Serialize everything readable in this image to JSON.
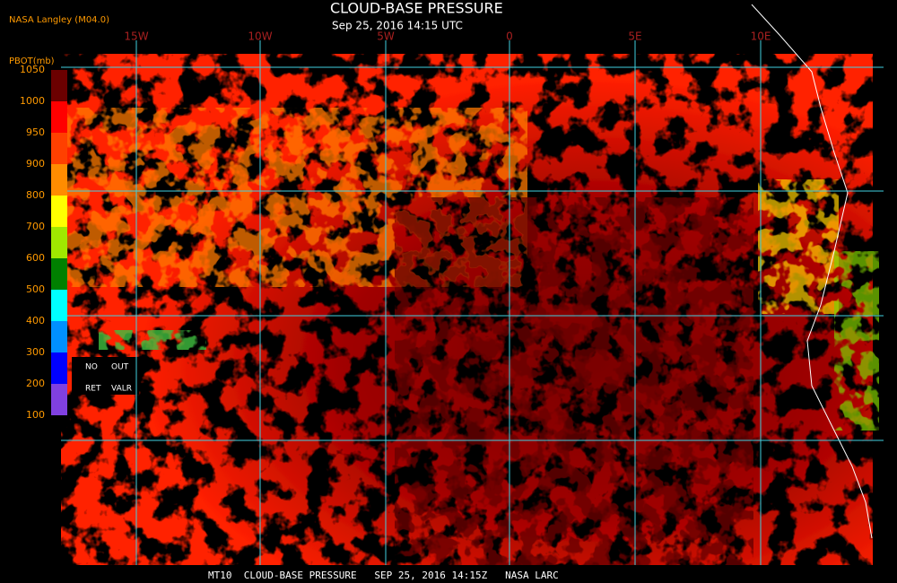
{
  "header": {
    "source": "NASA Langley (M04.0)",
    "title": "CLOUD-BASE PRESSURE",
    "subtitle": "Sep 25, 2016 14:15 UTC"
  },
  "longitudes": [
    "15W",
    "10W",
    "5W",
    "0",
    "5E",
    "10E"
  ],
  "legend": {
    "label": "PBOT(mb)",
    "ticks": [
      1050,
      1000,
      950,
      900,
      800,
      700,
      600,
      500,
      400,
      300,
      200,
      100
    ],
    "colors": [
      "#6b0000",
      "#ff0000",
      "#ff4000",
      "#ff8c00",
      "#ffff00",
      "#a0e800",
      "#008000",
      "#00ffff",
      "#0090ff",
      "#0000ff",
      "#8040e0"
    ],
    "notes": [
      "NO",
      "OUT",
      "RET",
      "VALR"
    ]
  },
  "footer": "MT10  CLOUD-BASE PRESSURE   SEP 25, 2016 14:15Z   NASA LARC"
}
